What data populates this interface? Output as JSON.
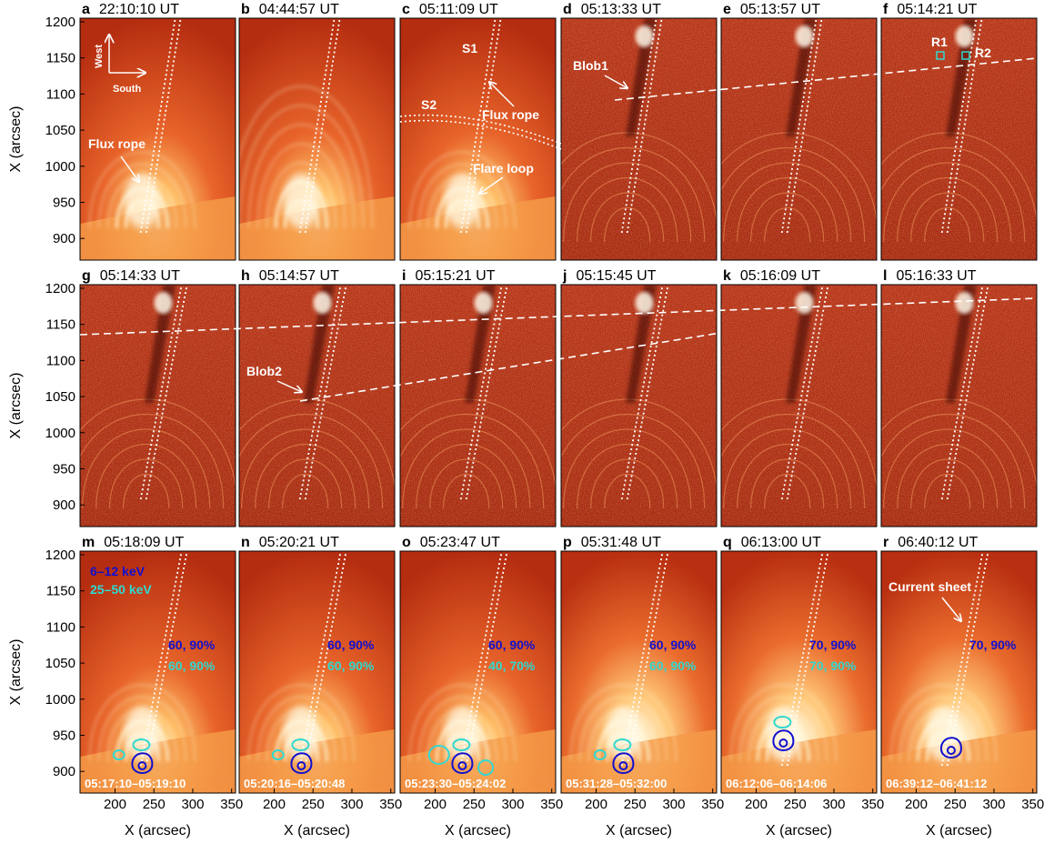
{
  "figure": {
    "y_axis_title": "X (arcsec)",
    "x_axis_title": "X (arcsec)",
    "y_ticks": [
      "900",
      "950",
      "1000",
      "1050",
      "1100",
      "1150",
      "1200"
    ],
    "x_ticks": [
      "200",
      "250",
      "300",
      "350"
    ],
    "colors": {
      "low_energy_contour": "#1010d0",
      "high_energy_contour": "#30d8d0",
      "roi_box": "#30d8d0"
    }
  },
  "panels": [
    {
      "letter": "a",
      "time": "22:10:10 UT"
    },
    {
      "letter": "b",
      "time": "04:44:57 UT"
    },
    {
      "letter": "c",
      "time": "05:11:09 UT"
    },
    {
      "letter": "d",
      "time": "05:13:33 UT"
    },
    {
      "letter": "e",
      "time": "05:13:57 UT"
    },
    {
      "letter": "f",
      "time": "05:14:21 UT"
    },
    {
      "letter": "g",
      "time": "05:14:33 UT"
    },
    {
      "letter": "h",
      "time": "05:14:57 UT"
    },
    {
      "letter": "i",
      "time": "05:15:21 UT"
    },
    {
      "letter": "j",
      "time": "05:15:45 UT"
    },
    {
      "letter": "k",
      "time": "05:16:09 UT"
    },
    {
      "letter": "l",
      "time": "05:16:33 UT"
    },
    {
      "letter": "m",
      "time": "05:18:09 UT",
      "levels_low": "60, 90%",
      "levels_high": "60, 90%",
      "time_range": "05:17:10–05:19:10"
    },
    {
      "letter": "n",
      "time": "05:20:21 UT",
      "levels_low": "60, 90%",
      "levels_high": "60, 90%",
      "time_range": "05:20:16–05:20:48"
    },
    {
      "letter": "o",
      "time": "05:23:47 UT",
      "levels_low": "60, 90%",
      "levels_high": "40, 70%",
      "time_range": "05:23:30–05:24:02"
    },
    {
      "letter": "p",
      "time": "05:31:48 UT",
      "levels_low": "60, 90%",
      "levels_high": "60, 90%",
      "time_range": "05:31:28–05:32:00"
    },
    {
      "letter": "q",
      "time": "06:13:00 UT",
      "levels_low": "70, 90%",
      "levels_high": "70, 90%",
      "time_range": "06:12:06–06:14:06"
    },
    {
      "letter": "r",
      "time": "06:40:12 UT",
      "levels_low": "70, 90%",
      "time_range": "06:39:12–06:41:12"
    }
  ],
  "annotations": {
    "compass_west": "West",
    "compass_south": "South",
    "flux_rope_a": "Flux rope",
    "s1": "S1",
    "s2": "S2",
    "flux_rope_c": "Flux rope",
    "flare_loop": "Flare loop",
    "blob1": "Blob1",
    "r1": "R1",
    "r2": "R2",
    "blob2": "Blob2",
    "legend_low": "6–12 keV",
    "legend_high": "25–50 keV",
    "current_sheet": "Current sheet"
  }
}
